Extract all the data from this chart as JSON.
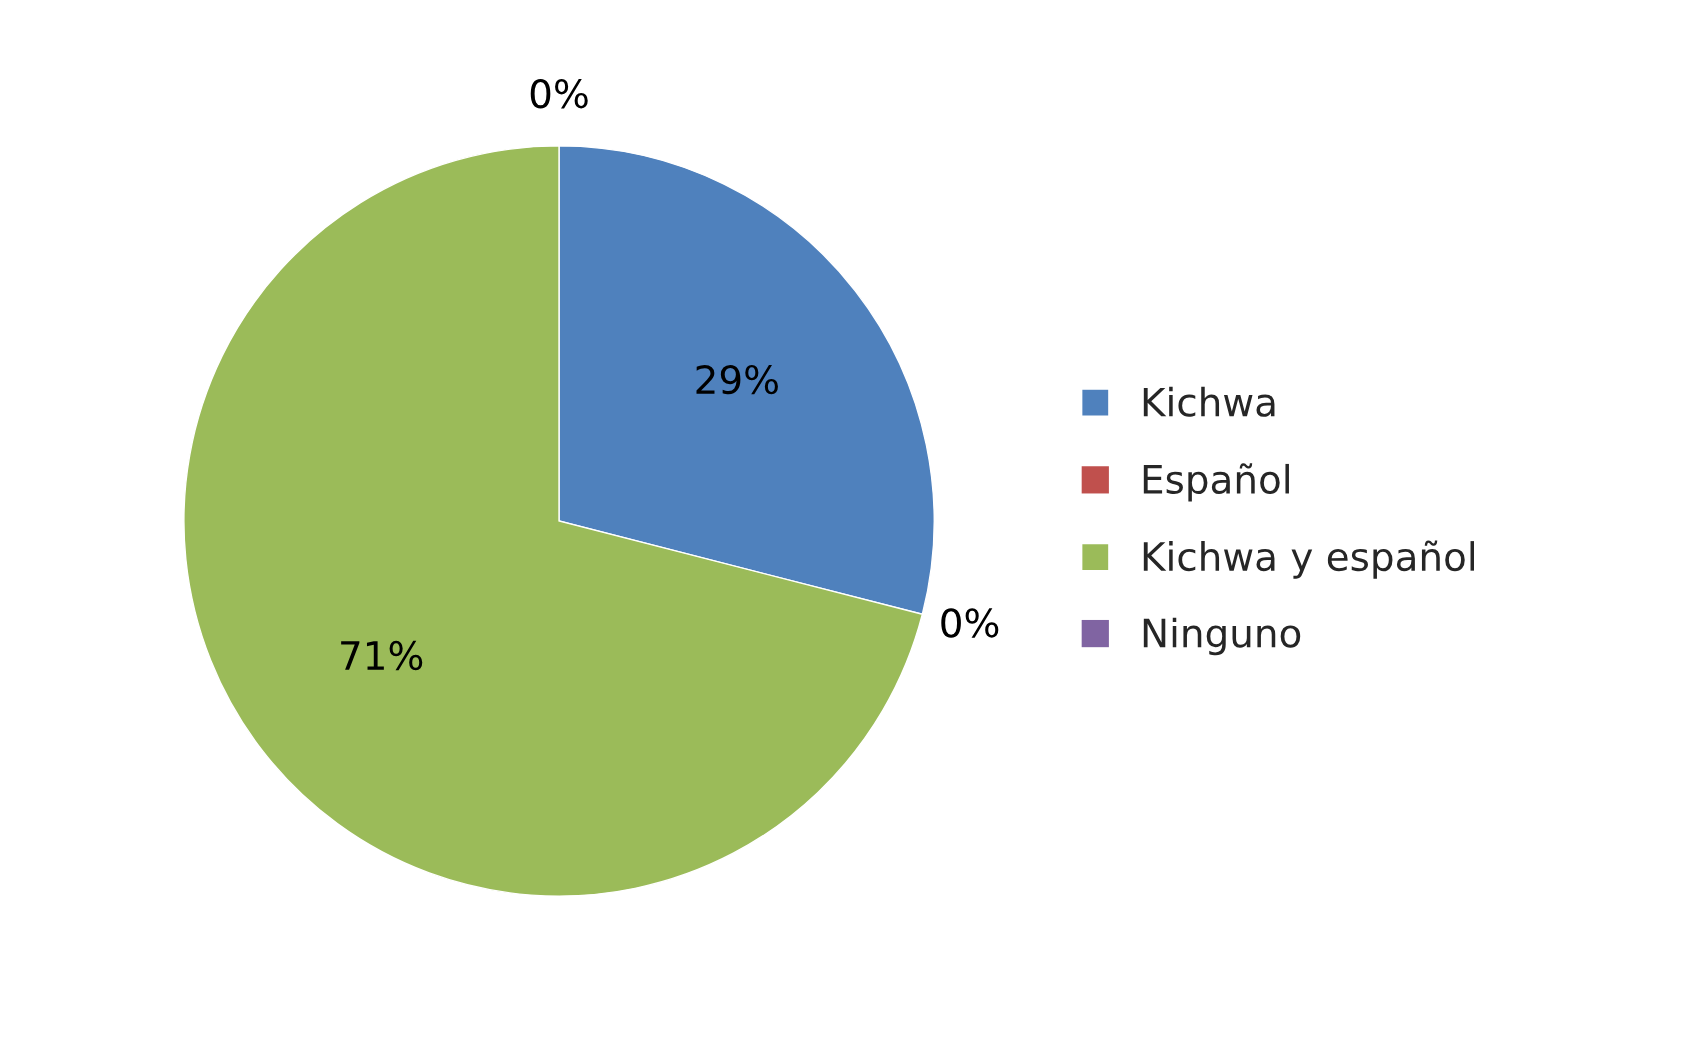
{
  "chart_data": {
    "type": "pie",
    "categories": [
      "Kichwa",
      "Español",
      "Kichwa y español",
      "Ninguno"
    ],
    "values": [
      29,
      0,
      71,
      0
    ],
    "colors": [
      "#4f81bd",
      "#c0504d",
      "#9bbb59",
      "#8064a2"
    ],
    "value_labels": [
      "29%",
      "0%",
      "71%",
      "0%"
    ],
    "legend": "right"
  }
}
